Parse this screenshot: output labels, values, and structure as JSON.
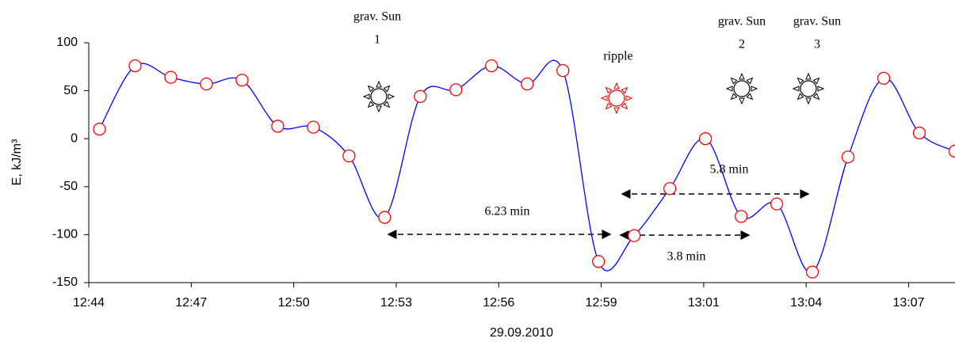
{
  "chart_data": {
    "type": "line",
    "ylabel": "E, kJ/m³",
    "xlabel": "29.09.2010",
    "x": [
      0.3,
      1.3,
      2.3,
      3.3,
      4.3,
      5.3,
      6.3,
      7.3,
      8.3,
      9.3,
      10.3,
      11.3,
      12.3,
      13.3,
      14.3,
      15.3,
      16.3,
      17.3,
      18.3,
      19.3,
      20.3,
      21.3,
      22.3,
      23.3,
      24.3
    ],
    "series": [
      {
        "color": "#0000ff",
        "marker_color": "#ff0000",
        "values": [
          10,
          76,
          64,
          57,
          61,
          13,
          12,
          -18,
          -82,
          44,
          51,
          76,
          57,
          71,
          -128,
          -101,
          -52,
          0,
          -81,
          -68,
          -139,
          -19,
          63,
          6,
          -13
        ]
      }
    ],
    "xlim": [
      0,
      24.3
    ],
    "xticks": [
      {
        "value": 0,
        "label": "12:44"
      },
      {
        "value": 2.875,
        "label": "12:47"
      },
      {
        "value": 5.75,
        "label": "12:50"
      },
      {
        "value": 8.625,
        "label": "12:53"
      },
      {
        "value": 11.5,
        "label": "12:56"
      },
      {
        "value": 14.375,
        "label": "12:59"
      },
      {
        "value": 17.25,
        "label": "13:01"
      },
      {
        "value": 20.125,
        "label": "13:04"
      },
      {
        "value": 23,
        "label": "13:07"
      }
    ],
    "ylim": [
      -150,
      100
    ],
    "yticks": [
      -150,
      -100,
      -50,
      0,
      50,
      100
    ],
    "annotations": [
      {
        "lines": [
          "grav. Sun",
          "1"
        ]
      },
      {
        "lines": [
          "ripple"
        ]
      },
      {
        "lines": [
          "grav. Sun",
          "2"
        ]
      },
      {
        "lines": [
          "grav. Sun",
          "3"
        ]
      },
      {
        "lines": [
          "6.23 min"
        ]
      },
      {
        "lines": [
          "3.8 min"
        ]
      },
      {
        "lines": [
          "5.8 min"
        ]
      }
    ]
  }
}
